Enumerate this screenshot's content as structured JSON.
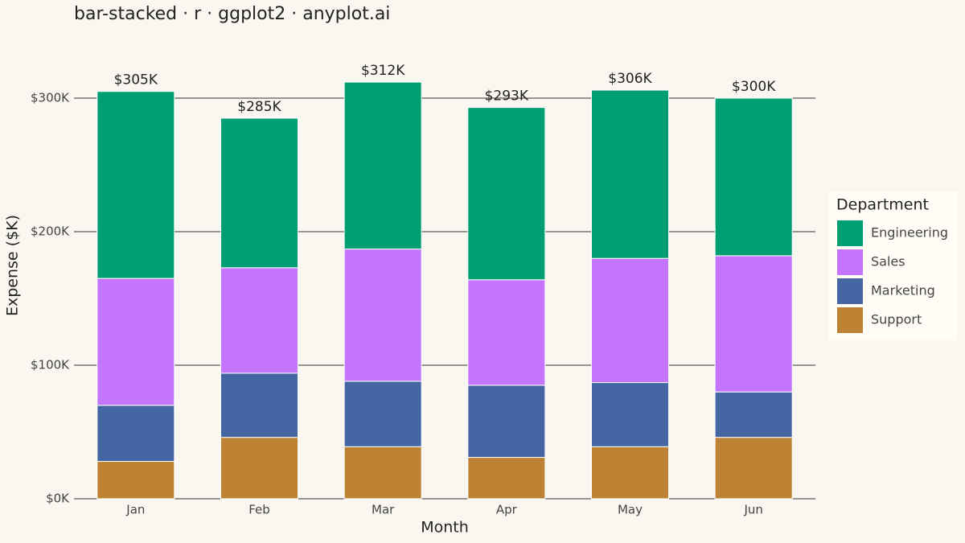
{
  "chart_data": {
    "type": "bar-stacked",
    "title": "bar-stacked · r · ggplot2 · anyplot.ai",
    "x_label": "Month",
    "y_label": "Expense ($K)",
    "categories": [
      "Jan",
      "Feb",
      "Mar",
      "Apr",
      "May",
      "Jun"
    ],
    "series": [
      {
        "name": "Engineering",
        "color": "#009E73",
        "values": [
          140,
          112,
          125,
          129,
          126,
          118
        ]
      },
      {
        "name": "Sales",
        "color": "#C475FB",
        "values": [
          95,
          79,
          99,
          79,
          93,
          102
        ]
      },
      {
        "name": "Marketing",
        "color": "#4467A3",
        "values": [
          42,
          48,
          49,
          54,
          48,
          34
        ]
      },
      {
        "name": "Support",
        "color": "#BD8233",
        "values": [
          28,
          46,
          39,
          31,
          39,
          46
        ]
      }
    ],
    "totals": {
      "values": [
        305,
        285,
        312,
        293,
        306,
        300
      ],
      "value_labels": [
        "$305K",
        "$285K",
        "$312K",
        "$293K",
        "$306K",
        "$300K"
      ]
    },
    "ylim": [
      0,
      325
    ],
    "yticks": [
      {
        "value": 0,
        "label": "$0K"
      },
      {
        "value": 100,
        "label": "$100K"
      },
      {
        "value": 200,
        "label": "$200K"
      },
      {
        "value": 300,
        "label": "$300K"
      }
    ],
    "grid": true,
    "legend_title": "Department",
    "legend_position": "right"
  }
}
